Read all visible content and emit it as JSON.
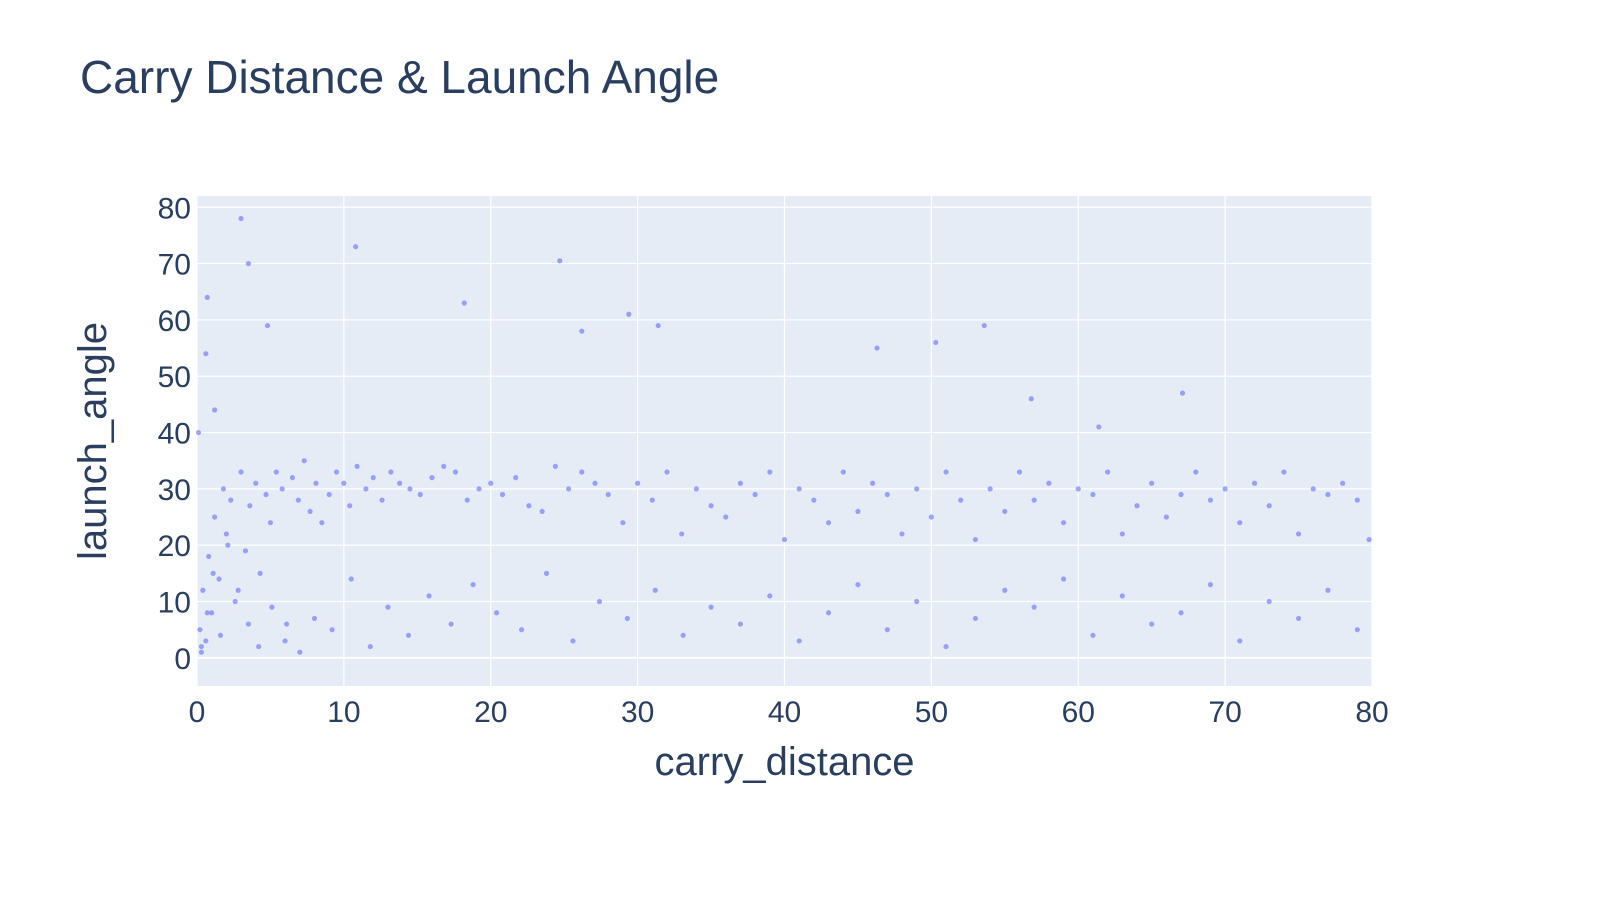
{
  "chart_data": {
    "type": "scatter",
    "title": "Carry Distance & Launch Angle",
    "xlabel": "carry_distance",
    "ylabel": "launch_angle",
    "xlim": [
      0,
      80
    ],
    "ylim": [
      -5,
      82
    ],
    "xticks": [
      "0",
      "10",
      "20",
      "30",
      "40",
      "50",
      "60",
      "70",
      "80"
    ],
    "yticks": [
      "0",
      "10",
      "20",
      "30",
      "40",
      "50",
      "60",
      "70",
      "80"
    ],
    "grid": true,
    "legend": "none",
    "colors": {
      "marker": "#636efa",
      "plot_bg": "#e5ecf6",
      "grid": "#ffffff",
      "text": "#2a3f5f"
    },
    "series": [
      {
        "x": [
          0.2,
          0.4,
          0.6,
          0.8,
          1.0,
          1.2,
          1.5,
          1.8,
          2.0,
          2.3,
          2.6,
          3.0,
          3.3,
          3.6,
          4.0,
          4.3,
          4.7,
          5.0,
          5.4,
          5.8,
          6.1,
          6.5,
          6.9,
          7.3,
          7.7,
          8.1,
          8.5,
          9.0,
          9.5,
          10.0,
          10.4,
          10.9,
          11.5,
          12.0,
          12.6,
          13.2,
          13.8,
          14.5,
          15.2,
          16.0,
          16.8,
          17.6,
          18.4,
          19.2,
          20.0,
          20.8,
          21.7,
          22.6,
          23.5,
          24.4,
          25.3,
          26.2,
          27.1,
          28.0,
          29.0,
          30.0,
          31.0,
          32.0,
          33.0,
          34.0,
          35.0,
          36.0,
          37.0,
          38.0,
          39.0,
          40.0,
          41.0,
          42.0,
          43.0,
          44.0,
          45.0,
          46.0,
          47.0,
          48.0,
          49.0,
          50.0,
          51.0,
          52.0,
          53.0,
          54.0,
          55.0,
          56.0,
          57.0,
          58.0,
          59.0,
          60.0,
          61.0,
          62.0,
          63.0,
          64.0,
          65.0,
          66.0,
          67.0,
          68.0,
          69.0,
          70.0,
          71.0,
          72.0,
          73.0,
          74.0,
          75.0,
          76.0,
          77.0,
          78.0,
          79.0,
          79.8,
          0.3,
          0.7,
          1.1,
          1.6,
          2.1,
          2.8,
          3.5,
          4.2,
          5.1,
          6.0,
          7.0,
          8.0,
          9.2,
          10.5,
          11.8,
          13.0,
          14.4,
          15.8,
          17.3,
          18.8,
          20.4,
          22.1,
          23.8,
          25.6,
          27.4,
          29.3,
          31.2,
          33.1,
          35.0,
          37.0,
          39.0,
          41.0,
          43.0,
          45.0,
          47.0,
          49.0,
          51.0,
          53.0,
          55.0,
          57.0,
          59.0,
          61.0,
          63.0,
          65.0,
          67.0,
          69.0,
          71.0,
          73.0,
          75.0,
          77.0,
          79.0,
          3.0,
          3.5,
          4.8,
          10.8,
          24.7,
          29.4,
          31.4,
          26.2,
          18.2,
          0.7,
          0.6,
          1.2,
          46.3,
          53.6,
          50.3,
          61.4,
          67.1,
          56.8,
          0.3,
          0.1
        ],
        "y": [
          5,
          12,
          3,
          18,
          8,
          25,
          14,
          30,
          22,
          28,
          10,
          33,
          19,
          27,
          31,
          15,
          29,
          24,
          33,
          30,
          6,
          32,
          28,
          35,
          26,
          31,
          24,
          29,
          33,
          31,
          27,
          34,
          30,
          32,
          28,
          33,
          31,
          30,
          29,
          32,
          34,
          33,
          28,
          30,
          31,
          29,
          32,
          27,
          26,
          34,
          30,
          33,
          31,
          29,
          24,
          31,
          28,
          33,
          22,
          30,
          27,
          25,
          31,
          29,
          33,
          21,
          30,
          28,
          24,
          33,
          26,
          31,
          29,
          22,
          30,
          25,
          33,
          28,
          21,
          30,
          26,
          33,
          28,
          31,
          24,
          30,
          29,
          33,
          22,
          27,
          31,
          25,
          29,
          33,
          28,
          30,
          24,
          31,
          27,
          33,
          22,
          30,
          29,
          31,
          28,
          21,
          2,
          8,
          15,
          4,
          20,
          12,
          6,
          2,
          9,
          3,
          1,
          7,
          5,
          14,
          2,
          9,
          4,
          11,
          6,
          13,
          8,
          5,
          15,
          3,
          10,
          7,
          12,
          4,
          9,
          6,
          11,
          3,
          8,
          13,
          5,
          10,
          2,
          7,
          12,
          9,
          14,
          4,
          11,
          6,
          8,
          13,
          3,
          10,
          7,
          12,
          5,
          78,
          70,
          59,
          73,
          70.5,
          61,
          59,
          58,
          63,
          64,
          54,
          44,
          55,
          59,
          56,
          41,
          47,
          46,
          1,
          40
        ]
      }
    ]
  }
}
